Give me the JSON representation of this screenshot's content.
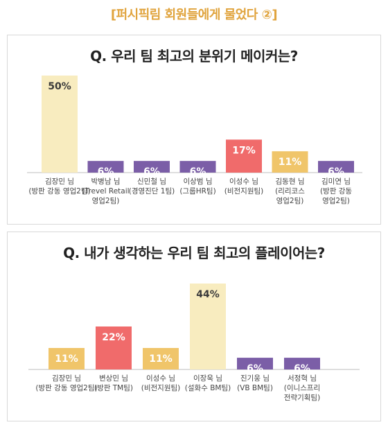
{
  "header": {
    "title": "[퍼시픽림 회원들에게 물었다 ②]"
  },
  "colors": {
    "header": "#e0a33c",
    "purple": "#7b5ea7",
    "red": "#f06b6b",
    "gold": "#f0c56a",
    "cream": "#f8ecbf",
    "axis": "#bdbdbd"
  },
  "chart_data": [
    {
      "type": "bar",
      "title": "Q. 우리 팀 최고의 분위기 메이커는?",
      "categories": [
        [
          "김장민 님",
          "(방판 강동 영업2팀)"
        ],
        [
          "박병남 님",
          "(Trevel Retail",
          "영업2팀)"
        ],
        [
          "신민철 님",
          "(경영진단 1팀)"
        ],
        [
          "이상범 님",
          "(그룹HR팀)"
        ],
        [
          "이성수 님",
          "(비전지원팀)"
        ],
        [
          "김동현 님",
          "(리리코스",
          "영업2팀)"
        ],
        [
          "김미연 님",
          "(방판 강동",
          "영업2팀)"
        ]
      ],
      "values": [
        50,
        6,
        6,
        6,
        17,
        11,
        6
      ],
      "value_labels": [
        "50%",
        "6%",
        "6%",
        "6%",
        "17%",
        "11%",
        "6%"
      ],
      "bar_colors": [
        "cream",
        "purple",
        "purple",
        "purple",
        "red",
        "gold",
        "purple"
      ],
      "label_colors": [
        "#3a3a3a",
        "#ffffff",
        "#ffffff",
        "#ffffff",
        "#ffffff",
        "#ffffff",
        "#ffffff"
      ],
      "ylim": [
        0,
        50
      ],
      "grid": false,
      "legend": "none"
    },
    {
      "type": "bar",
      "title": "Q. 내가 생각하는 우리 팀 최고의 플레이어는?",
      "categories": [
        [
          "김장민 님",
          "(방판 강동 영업2팀)"
        ],
        [
          "변상민 님",
          "(방판 TM팀)"
        ],
        [
          "이성수 님",
          "(비전지원팀)"
        ],
        [
          "이장욱 님",
          "(설화수 BM팀)"
        ],
        [
          "진기웅 님",
          "(VB BM팀)"
        ],
        [
          "서정혁 님",
          "(이니스프리",
          "전략기획팀)"
        ]
      ],
      "values": [
        11,
        22,
        11,
        44,
        6,
        6
      ],
      "value_labels": [
        "11%",
        "22%",
        "11%",
        "44%",
        "6%",
        "6%"
      ],
      "bar_colors": [
        "gold",
        "red",
        "gold",
        "cream",
        "purple",
        "purple"
      ],
      "label_colors": [
        "#ffffff",
        "#ffffff",
        "#ffffff",
        "#3a3a3a",
        "#ffffff",
        "#ffffff"
      ],
      "ylim": [
        0,
        44
      ],
      "grid": false,
      "legend": "none"
    }
  ]
}
